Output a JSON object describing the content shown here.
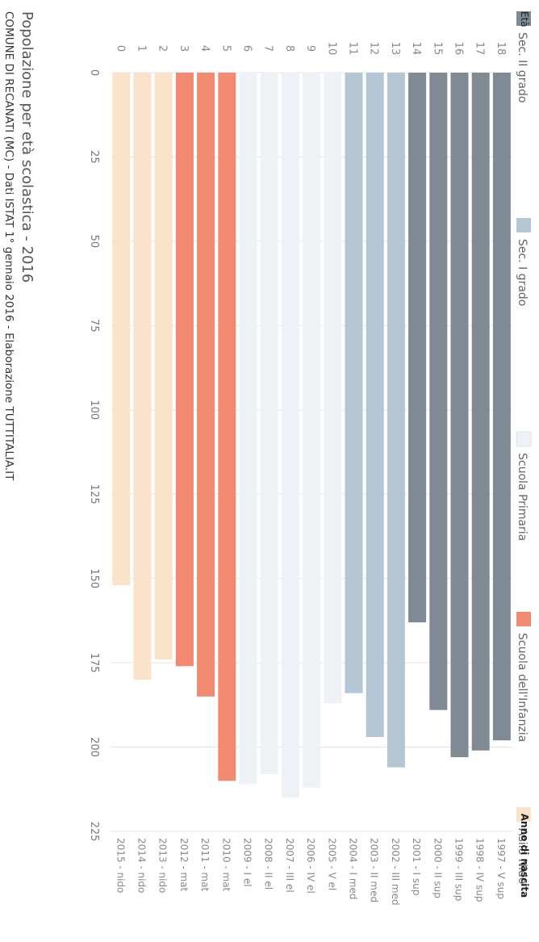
{
  "chart_data": {
    "type": "bar",
    "orientation": "horizontal",
    "title": "Popolazione per età scolastica - 2016",
    "subtitle": "COMUNE DI RECANATI (MC) - Dati ISTAT 1° gennaio 2016 - Elaborazione TUTTITALIA.IT",
    "y_header_left": "Età",
    "y_header_right": "Anno di nascita",
    "xlim": [
      0,
      225
    ],
    "x_ticks": [
      0,
      25,
      50,
      75,
      100,
      125,
      150,
      175,
      200,
      225
    ],
    "grid": true,
    "legend_position": "top",
    "series": [
      {
        "name": "Sec. II grado",
        "color": "#7f8a94"
      },
      {
        "name": "Sec. I grado",
        "color": "#b4c6d3"
      },
      {
        "name": "Scuola Primaria",
        "color": "#eef2f6"
      },
      {
        "name": "Scuola dell'Infanzia",
        "color": "#f28a72"
      },
      {
        "name": "Asilo Nido",
        "color": "#fbe3cb"
      }
    ],
    "categories": [
      "18",
      "17",
      "16",
      "15",
      "14",
      "13",
      "12",
      "11",
      "10",
      "9",
      "8",
      "7",
      "6",
      "5",
      "4",
      "3",
      "2",
      "1",
      "0"
    ],
    "birth_labels": [
      "1997 - V sup",
      "1998 - IV sup",
      "1999 - III sup",
      "2000 - II sup",
      "2001 - I sup",
      "2002 - III med",
      "2003 - II med",
      "2004 - I med",
      "2005 - V el",
      "2006 - IV el",
      "2007 - III el",
      "2008 - II el",
      "2009 - I el",
      "2010 - mat",
      "2011 - mat",
      "2012 - mat",
      "2013 - nido",
      "2014 - nido",
      "2015 - nido"
    ],
    "values": [
      198,
      201,
      203,
      189,
      163,
      206,
      197,
      184,
      187,
      212,
      215,
      208,
      211,
      210,
      185,
      176,
      174,
      180,
      152
    ],
    "series_index": [
      0,
      0,
      0,
      0,
      0,
      1,
      1,
      1,
      2,
      2,
      2,
      2,
      2,
      3,
      3,
      3,
      4,
      4,
      4
    ]
  }
}
